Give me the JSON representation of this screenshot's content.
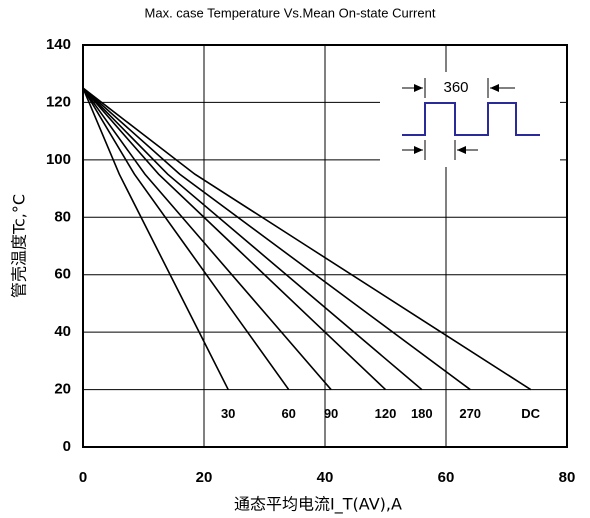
{
  "chart_data": {
    "type": "line",
    "title": "Max. case Temperature Vs.Mean On-state Current",
    "x_label": "通态平均电流I_T(AV),A",
    "y_label": "管壳温度Tc,°C",
    "annotation": "360",
    "xlim": [
      0,
      80
    ],
    "xticks": [
      0,
      20,
      40,
      60,
      80
    ],
    "ylim": [
      0,
      140
    ],
    "yticks": [
      0,
      20,
      40,
      60,
      80,
      100,
      120,
      140
    ],
    "grid": true,
    "series": [
      {
        "name": "30",
        "color": "#000000",
        "x": [
          0,
          6,
          12,
          18,
          24
        ],
        "values": [
          125,
          95,
          70,
          45,
          20
        ]
      },
      {
        "name": "60",
        "color": "#000000",
        "x": [
          0,
          8.5,
          17,
          25.5,
          34
        ],
        "values": [
          125,
          95,
          70,
          45,
          20
        ]
      },
      {
        "name": "90",
        "color": "#000000",
        "x": [
          0,
          10.25,
          20.5,
          30.75,
          41
        ],
        "values": [
          125,
          95,
          70,
          45,
          20
        ]
      },
      {
        "name": "120",
        "color": "#000000",
        "x": [
          0,
          12.5,
          25,
          37.5,
          50
        ],
        "values": [
          125,
          95,
          70,
          45,
          20
        ]
      },
      {
        "name": "180",
        "color": "#000000",
        "x": [
          0,
          14,
          28,
          42,
          56
        ],
        "values": [
          125,
          95,
          70,
          45,
          20
        ]
      },
      {
        "name": "270",
        "color": "#000000",
        "x": [
          0,
          16,
          32,
          48,
          64
        ],
        "values": [
          125,
          95,
          70,
          45,
          20
        ]
      },
      {
        "name": "DC",
        "color": "#000000",
        "x": [
          0,
          18.5,
          37,
          55.5,
          74
        ],
        "values": [
          125,
          95,
          70,
          45,
          20
        ]
      }
    ]
  }
}
